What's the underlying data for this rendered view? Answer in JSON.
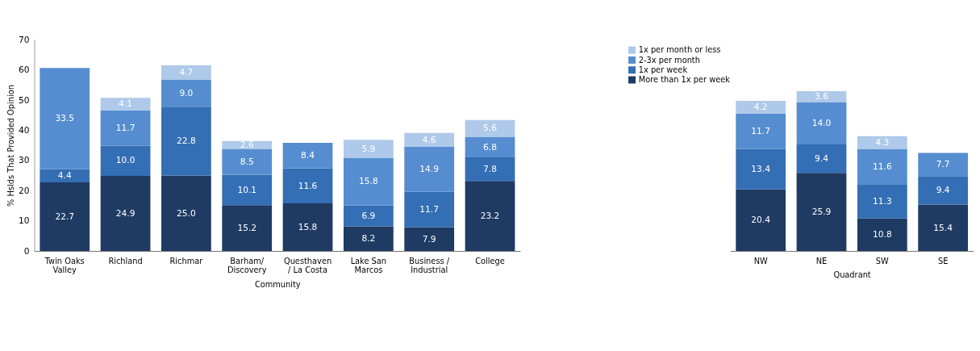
{
  "chart_data": [
    {
      "type": "bar",
      "stacked": true,
      "grid": false,
      "ylabel": "% Hslds That Provided Opinion",
      "xlabel": "Community",
      "legend": "top right",
      "categories": [
        "Twin Oaks Valley",
        "Richland",
        "Richmar",
        "Barham/ Discovery",
        "Questhaven / La Costa",
        "Lake San Marcos",
        "Business / Industrial",
        "College"
      ],
      "ylim": [
        0,
        70
      ],
      "yticks": [
        0,
        10,
        20,
        30,
        40,
        50,
        60,
        70
      ],
      "series": [
        {
          "name": "More than 1x per week",
          "color": "#1f3a63",
          "values": [
            22.7,
            24.9,
            25.0,
            15.2,
            15.8,
            8.2,
            7.9,
            23.2
          ],
          "value_labels": [
            "22.7",
            "24.9",
            "25.0",
            "15.2",
            "15.8",
            "8.2",
            "7.9",
            "23.2"
          ]
        },
        {
          "name": "1x per week",
          "color": "#346eb4",
          "values": [
            4.4,
            10.0,
            22.8,
            10.1,
            11.6,
            6.9,
            11.7,
            7.8
          ],
          "value_labels": [
            "4.4",
            "10.0",
            "22.8",
            "10.1",
            "11.6",
            "6.9",
            "11.7",
            "7.8"
          ]
        },
        {
          "name": "2-3x per month",
          "color": "#568dd0",
          "values": [
            33.5,
            11.7,
            9.0,
            8.5,
            8.4,
            15.8,
            14.9,
            6.8
          ],
          "value_labels": [
            "33.5",
            "11.7",
            "9.0",
            "8.5",
            "8.4",
            "15.8",
            "14.9",
            "6.8"
          ]
        },
        {
          "name": "1x per month or less",
          "color": "#aec9e9",
          "values": [
            0.0,
            4.1,
            4.7,
            2.6,
            0.0,
            5.9,
            4.6,
            5.6
          ],
          "value_labels": [
            null,
            "4.1",
            "4.7",
            "2.6",
            null,
            "5.9",
            "4.6",
            "5.6"
          ]
        }
      ]
    },
    {
      "type": "bar",
      "stacked": true,
      "grid": false,
      "xlabel": "Quadrant",
      "tick_labels": "x",
      "categories": [
        "NW",
        "NE",
        "SW",
        "SE"
      ],
      "ylim": [
        0,
        70
      ],
      "yticks": [
        0,
        10,
        20,
        30,
        40,
        50,
        60,
        70
      ],
      "series": [
        {
          "name": "More than 1x per week",
          "color": "#1f3a63",
          "values": [
            20.4,
            25.9,
            10.8,
            15.4
          ],
          "value_labels": [
            "20.4",
            "25.9",
            "10.8",
            "15.4"
          ]
        },
        {
          "name": "1x per week",
          "color": "#346eb4",
          "values": [
            13.4,
            9.4,
            11.3,
            9.4
          ],
          "value_labels": [
            "13.4",
            "9.4",
            "11.3",
            "9.4"
          ]
        },
        {
          "name": "2-3x per month",
          "color": "#568dd0",
          "values": [
            11.7,
            14.0,
            11.6,
            7.7
          ],
          "value_labels": [
            "11.7",
            "14.0",
            "11.6",
            "7.7"
          ]
        },
        {
          "name": "1x per month or less",
          "color": "#aec9e9",
          "values": [
            4.2,
            3.6,
            4.3,
            0.0
          ],
          "value_labels": [
            "4.2",
            "3.6",
            "4.3",
            null
          ]
        }
      ]
    }
  ]
}
